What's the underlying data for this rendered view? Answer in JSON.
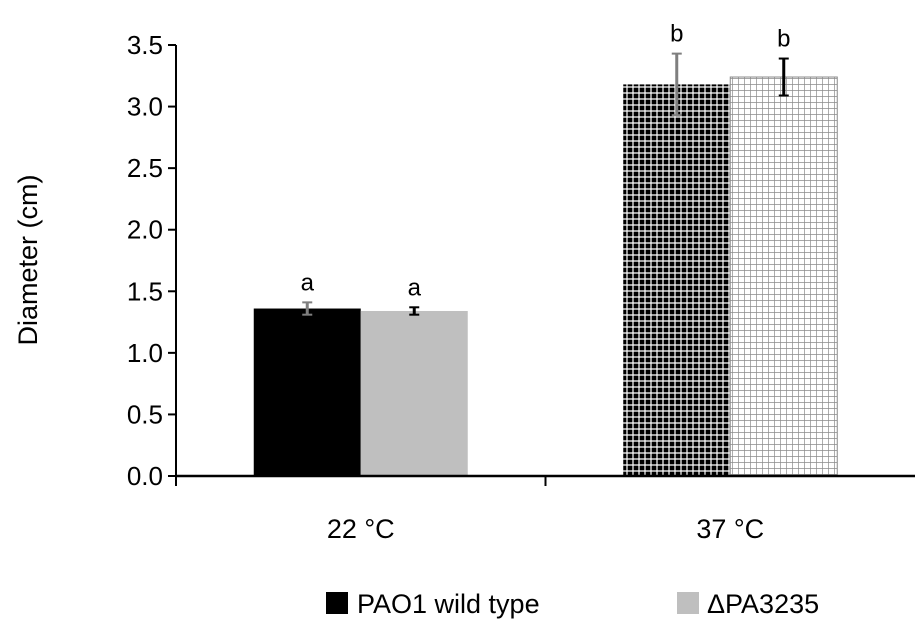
{
  "chart_data": {
    "type": "bar",
    "title": "",
    "xlabel": "",
    "ylabel": "Diameter (cm)",
    "ylim": [
      0,
      3.5
    ],
    "yticks": [
      "0.0",
      "0.5",
      "1.0",
      "1.5",
      "2.0",
      "2.5",
      "3.0",
      "3.5"
    ],
    "categories": [
      "22 °C",
      "37 °C"
    ],
    "series": [
      {
        "name": "PAO1 wild type",
        "values": [
          1.36,
          3.18
        ],
        "errors": [
          0.05,
          0.25
        ],
        "significance": [
          "a",
          "b"
        ],
        "color": "#000000"
      },
      {
        "name": "ΔPA3235",
        "values": [
          1.34,
          3.24
        ],
        "errors": [
          0.03,
          0.15
        ],
        "significance": [
          "a",
          "b"
        ],
        "color": "#bfbfbf"
      }
    ],
    "pattern_by_category": [
      "solid",
      "grid"
    ],
    "legend_position": "bottom",
    "grid": false
  }
}
